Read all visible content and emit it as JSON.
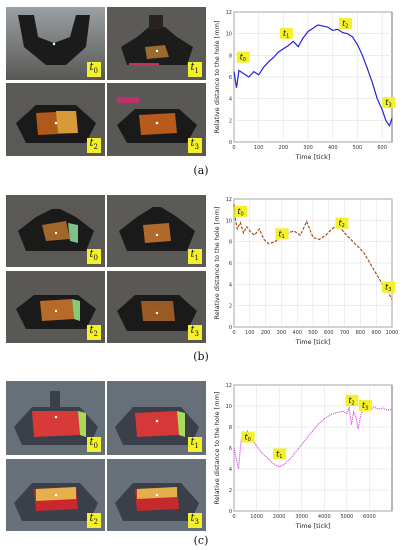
{
  "figure": {
    "panels": [
      {
        "label": "(a)",
        "frame_tags": [
          "t",
          "t",
          "t",
          "t"
        ],
        "frame_subs": [
          "0",
          "1",
          "2",
          "3"
        ]
      },
      {
        "label": "(b)",
        "frame_tags": [
          "t",
          "t",
          "t",
          "t"
        ],
        "frame_subs": [
          "0",
          "1",
          "2",
          "3"
        ]
      },
      {
        "label": "(c)",
        "frame_tags": [
          "t",
          "t",
          "t",
          "t"
        ],
        "frame_subs": [
          "0",
          "1",
          "2",
          "3"
        ]
      }
    ]
  },
  "chart_data": [
    {
      "type": "line",
      "xlabel": "Time [tick]",
      "ylabel": "Relative distance to the hole [mm]",
      "xlim": [
        0,
        640
      ],
      "ylim": [
        0,
        12
      ],
      "xticks": [
        0,
        100,
        200,
        300,
        400,
        500,
        600
      ],
      "yticks": [
        0,
        2,
        4,
        6,
        8,
        10,
        12
      ],
      "color": "#2222dd",
      "style": "solid",
      "grid": true,
      "annotations": [
        {
          "text": "t",
          "sub": "0",
          "x": 35,
          "y": 7.6
        },
        {
          "text": "t",
          "sub": "1",
          "x": 210,
          "y": 9.8
        },
        {
          "text": "t",
          "sub": "2",
          "x": 450,
          "y": 10.7
        },
        {
          "text": "t",
          "sub": "3",
          "x": 625,
          "y": 3.4
        }
      ],
      "x": [
        0,
        10,
        20,
        40,
        60,
        80,
        100,
        120,
        140,
        160,
        180,
        200,
        220,
        240,
        260,
        280,
        300,
        320,
        340,
        360,
        380,
        400,
        420,
        440,
        460,
        480,
        500,
        520,
        540,
        560,
        580,
        600,
        615,
        630,
        640
      ],
      "y": [
        6.5,
        5.0,
        6.6,
        6.3,
        6.0,
        6.5,
        6.2,
        6.9,
        7.4,
        7.8,
        8.3,
        8.6,
        8.9,
        9.3,
        8.8,
        9.6,
        10.2,
        10.5,
        10.8,
        10.7,
        10.6,
        10.3,
        10.4,
        10.1,
        10.0,
        9.7,
        9.0,
        8.0,
        6.8,
        5.5,
        4.0,
        3.0,
        2.0,
        1.5,
        2.2
      ]
    },
    {
      "type": "line",
      "xlabel": "Time [tick]",
      "ylabel": "Relative distance to the hole [mm]",
      "xlim": [
        0,
        1000
      ],
      "ylim": [
        0,
        12
      ],
      "xticks": [
        0,
        100,
        200,
        300,
        400,
        500,
        600,
        700,
        800,
        900,
        1000
      ],
      "yticks": [
        0,
        2,
        4,
        6,
        8,
        10,
        12
      ],
      "color": "#a0440a",
      "style": "dashed",
      "grid": true,
      "annotations": [
        {
          "text": "t",
          "sub": "0",
          "x": 40,
          "y": 10.6
        },
        {
          "text": "t",
          "sub": "1",
          "x": 300,
          "y": 8.5
        },
        {
          "text": "t",
          "sub": "2",
          "x": 680,
          "y": 9.5
        },
        {
          "text": "t",
          "sub": "3",
          "x": 975,
          "y": 3.5
        }
      ],
      "x": [
        0,
        10,
        20,
        40,
        60,
        80,
        100,
        130,
        160,
        190,
        220,
        260,
        300,
        340,
        380,
        420,
        460,
        500,
        540,
        580,
        620,
        660,
        700,
        740,
        780,
        820,
        860,
        900,
        940,
        970,
        1000
      ],
      "y": [
        11.5,
        10.0,
        9.2,
        9.8,
        8.8,
        9.4,
        9.0,
        8.6,
        9.2,
        8.2,
        7.8,
        8.0,
        8.5,
        8.8,
        9.0,
        8.6,
        9.9,
        8.4,
        8.2,
        8.6,
        9.2,
        9.6,
        8.8,
        8.2,
        7.6,
        7.0,
        6.0,
        5.0,
        4.0,
        3.4,
        2.6
      ]
    },
    {
      "type": "line",
      "xlabel": "Time [tick]",
      "ylabel": "Relative distance to the hole [mm]",
      "xlim": [
        0,
        7000
      ],
      "ylim": [
        0,
        12
      ],
      "xticks": [
        0,
        1000,
        2000,
        3000,
        4000,
        5000,
        6000
      ],
      "yticks": [
        0,
        2,
        4,
        6,
        8,
        10,
        12
      ],
      "color": "#cc33dd",
      "style": "dotted",
      "grid": true,
      "annotations": [
        {
          "text": "t",
          "sub": "0",
          "x": 600,
          "y": 6.8
        },
        {
          "text": "t",
          "sub": "1",
          "x": 2000,
          "y": 5.2
        },
        {
          "text": "t",
          "sub": "2",
          "x": 5200,
          "y": 10.3
        },
        {
          "text": "t",
          "sub": "3",
          "x": 5800,
          "y": 9.8
        }
      ],
      "x": [
        0,
        100,
        200,
        300,
        400,
        500,
        600,
        800,
        1000,
        1200,
        1500,
        1800,
        2000,
        2200,
        2500,
        2800,
        3100,
        3400,
        3700,
        4000,
        4300,
        4600,
        4800,
        5000,
        5100,
        5200,
        5300,
        5400,
        5500,
        5600,
        5700,
        5800,
        6000,
        6200,
        6400,
        6600,
        6800,
        7000
      ],
      "y": [
        6.0,
        5.0,
        4.0,
        6.5,
        7.5,
        7.0,
        7.6,
        6.8,
        6.2,
        5.6,
        5.0,
        4.4,
        4.2,
        4.4,
        5.0,
        5.8,
        6.6,
        7.4,
        8.2,
        8.8,
        9.2,
        9.4,
        9.5,
        9.3,
        9.8,
        8.2,
        9.4,
        9.0,
        7.8,
        9.0,
        9.6,
        9.8,
        9.6,
        9.9,
        9.7,
        9.8,
        9.6,
        9.7
      ]
    }
  ]
}
